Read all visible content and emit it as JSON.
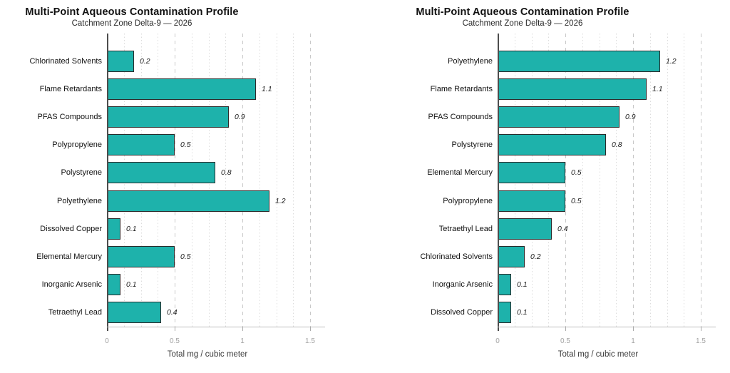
{
  "page": {
    "background": "#ffffff"
  },
  "chart_data": [
    {
      "type": "bar",
      "orientation": "horizontal",
      "title": "Multi-Point Aqueous Contamination Profile",
      "subtitle": "Catchment Zone Delta-9 — 2026",
      "xlabel": "Total mg / cubic meter",
      "categories": [
        "Chlorinated Solvents",
        "Flame Retardants",
        "PFAS Compounds",
        "Polypropylene",
        "Polystyrene",
        "Polyethylene",
        "Dissolved Copper",
        "Elemental Mercury",
        "Inorganic Arsenic",
        "Tetraethyl Lead"
      ],
      "values": [
        0.2,
        1.1,
        0.9,
        0.5,
        0.8,
        1.2,
        0.1,
        0.5,
        0.1,
        0.4
      ],
      "value_labels": [
        "0.2",
        "1.1",
        "0.9",
        "0.5",
        "0.8",
        "1.2",
        "0.1",
        "0.5",
        "0.1",
        "0.4"
      ],
      "xtick_values": [
        0,
        0.5,
        1,
        1.5
      ],
      "xtick_labels": [
        "0",
        "0.5",
        "1",
        "1.5"
      ],
      "xlim": [
        0,
        1.61
      ],
      "grid": {
        "major_step": 0.5,
        "minor_step": 0.125,
        "major_style": "dashed",
        "minor_style": "dotted",
        "enabled": true
      },
      "legend": "none",
      "bar_color": "#1EB2AB",
      "bar_edge_color": "#2B2B2B"
    },
    {
      "type": "bar",
      "orientation": "horizontal",
      "title": "Multi-Point Aqueous Contamination Profile",
      "subtitle": "Catchment Zone Delta-9 — 2026",
      "xlabel": "Total mg / cubic meter",
      "categories": [
        "Polyethylene",
        "Flame Retardants",
        "PFAS Compounds",
        "Polystyrene",
        "Elemental Mercury",
        "Polypropylene",
        "Tetraethyl Lead",
        "Chlorinated Solvents",
        "Inorganic Arsenic",
        "Dissolved Copper"
      ],
      "values": [
        1.2,
        1.1,
        0.9,
        0.8,
        0.5,
        0.5,
        0.4,
        0.2,
        0.1,
        0.1
      ],
      "value_labels": [
        "1.2",
        "1.1",
        "0.9",
        "0.8",
        "0.5",
        "0.5",
        "0.4",
        "0.2",
        "0.1",
        "0.1"
      ],
      "xtick_values": [
        0,
        0.5,
        1,
        1.5
      ],
      "xtick_labels": [
        "0",
        "0.5",
        "1",
        "1.5"
      ],
      "xlim": [
        0,
        1.61
      ],
      "grid": {
        "major_step": 0.5,
        "minor_step": 0.125,
        "major_style": "dashed",
        "minor_style": "dotted",
        "enabled": true
      },
      "legend": "none",
      "bar_color": "#1EB2AB",
      "bar_edge_color": "#2B2B2B"
    }
  ]
}
